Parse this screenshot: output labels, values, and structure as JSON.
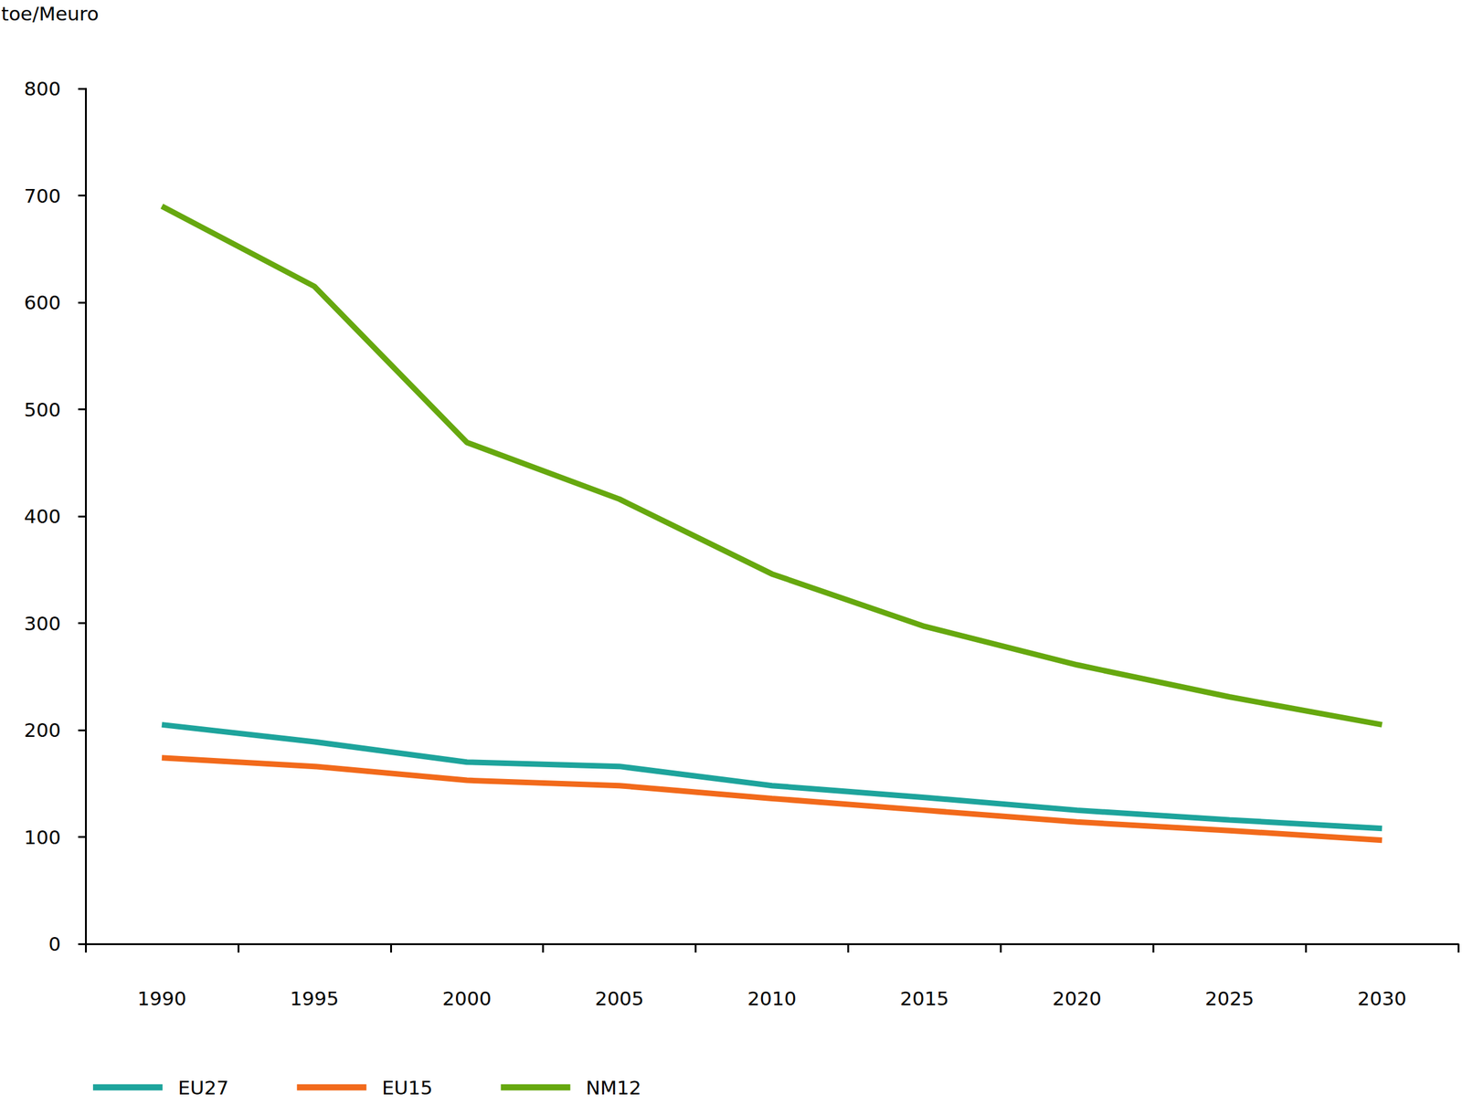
{
  "chart_data": {
    "type": "line",
    "y_label": "toe/Meuro",
    "categories": [
      "1990",
      "1995",
      "2000",
      "2005",
      "2010",
      "2015",
      "2020",
      "2025",
      "2030"
    ],
    "series": [
      {
        "name": "EU27",
        "color": "#1ea49c",
        "values": [
          205,
          189,
          170,
          166,
          148,
          137,
          125,
          116,
          108
        ]
      },
      {
        "name": "EU15",
        "color": "#f26a1b",
        "values": [
          174,
          166,
          153,
          148,
          136,
          125,
          114,
          106,
          97
        ]
      },
      {
        "name": "NM12",
        "color": "#66a80f",
        "values": [
          690,
          615,
          469,
          416,
          346,
          297,
          261,
          231,
          205
        ]
      }
    ],
    "ylim": [
      0,
      800
    ],
    "yticks": [
      0,
      100,
      200,
      300,
      400,
      500,
      600,
      700,
      800
    ],
    "grid": false,
    "legend": "bottom-left"
  }
}
